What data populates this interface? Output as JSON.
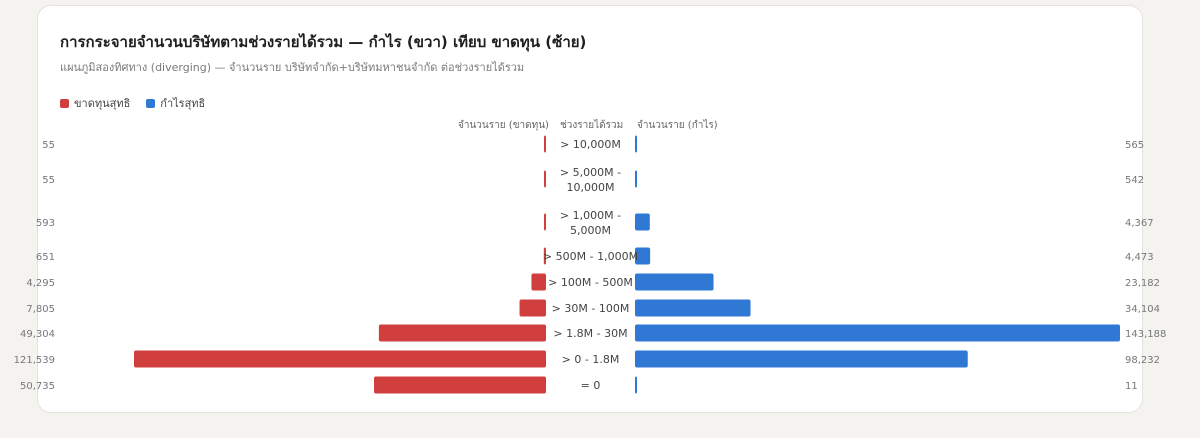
{
  "title": "การกระจายจำนวนบริษัทตามช่วงรายได้รวม — กำไร (ขวา) เทียบ ขาดทุน (ซ้าย)",
  "subtitle": "แผนภูมิสองทิศทาง (diverging) — จำนวนราย บริษัทจำกัด+บริษัทมหาชนจำกัด ต่อช่วงรายได้รวม",
  "columns": {
    "left": "จำนวนราย (ขาดทุน)",
    "center": "ช่วงรายได้รวม",
    "right": "จำนวนราย (กำไร)"
  },
  "colors": {
    "loss": "#d13e3e",
    "profit": "#2f78d3"
  },
  "chart_data": {
    "type": "bar",
    "orientation": "horizontal-diverging",
    "legend_position": "top-left",
    "categories": [
      [
        "> 10,000M"
      ],
      [
        "> 5,000M -",
        "10,000M"
      ],
      [
        "> 1,000M -",
        "5,000M"
      ],
      [
        "> 500M - 1,000M"
      ],
      [
        "> 100M - 500M"
      ],
      [
        "> 30M - 100M"
      ],
      [
        "> 1.8M - 30M"
      ],
      [
        "> 0 - 1.8M"
      ],
      [
        "= 0"
      ]
    ],
    "series": [
      {
        "name": "ขาดทุนสุทธิ",
        "side": "left",
        "values": [
          55,
          55,
          593,
          651,
          4295,
          7805,
          49304,
          121539,
          50735
        ],
        "labels": [
          "55",
          "55",
          "593",
          "651",
          "4,295",
          "7,805",
          "49,304",
          "121,539",
          "50,735"
        ]
      },
      {
        "name": "กำไรสุทธิ",
        "side": "right",
        "values": [
          565,
          542,
          4367,
          4473,
          23182,
          34104,
          143188,
          98232,
          11
        ],
        "labels": [
          "565",
          "542",
          "4,367",
          "4,473",
          "23,182",
          "34,104",
          "143,188",
          "98,232",
          "11"
        ]
      }
    ]
  }
}
